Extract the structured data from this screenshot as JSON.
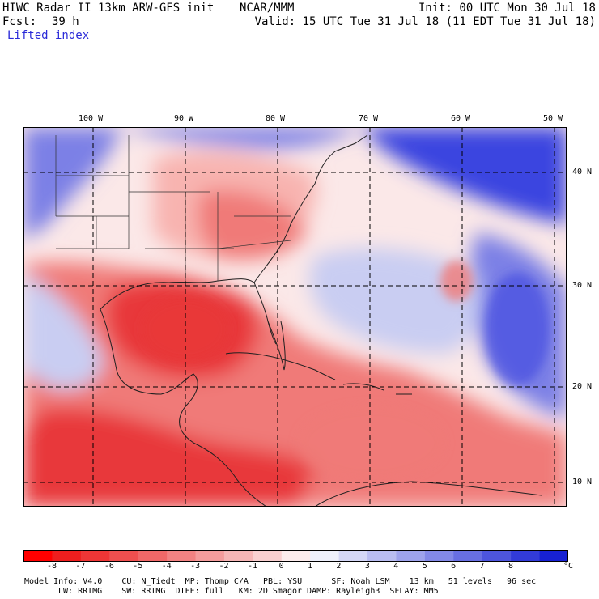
{
  "header": {
    "title_left": "HIWC Radar II 13km ARW-GFS init",
    "org": "NCAR/MMM",
    "init": "Init: 00 UTC Mon 30 Jul 18",
    "fcst_label": "Fcst:",
    "fcst_value": "39 h",
    "valid": "Valid: 15 UTC Tue 31 Jul 18 (11 EDT Tue 31 Jul 18)",
    "field": "Lifted index"
  },
  "map": {
    "lon_labels": [
      "100 W",
      "90 W",
      "80 W",
      "70 W",
      "60 W",
      "50 W"
    ],
    "lat_labels": [
      "40 N",
      "30 N",
      "20 N",
      "10 N"
    ],
    "colors": {
      "warm_strong": "#e8393a",
      "warm_mid": "#f07a78",
      "warm_light": "#f8b4b0",
      "neutral": "#fbe8e8",
      "cool_light": "#c9cdf2",
      "cool_mid": "#7c80e6",
      "cool_strong": "#3a44e0",
      "coast": "#202020",
      "grid": "#000000"
    }
  },
  "colorbar": {
    "ticks": [
      "-8",
      "-7",
      "-6",
      "-5",
      "-4",
      "-3",
      "-2",
      "-1",
      "0",
      "1",
      "2",
      "3",
      "4",
      "5",
      "6",
      "7",
      "8"
    ],
    "unit": "°C",
    "colors": [
      "#ff0000",
      "#ee1e1e",
      "#ee3636",
      "#ef4f4f",
      "#f06868",
      "#f28282",
      "#f49c9c",
      "#f6b6b6",
      "#f9d0d0",
      "#fcecec",
      "#eef0fb",
      "#d4d7f6",
      "#b9bdf1",
      "#9ea3ec",
      "#8389e7",
      "#686fe2",
      "#4d55dd",
      "#323bd8",
      "#1721d3"
    ]
  },
  "info": {
    "line1": "Model Info: V4.0    CU: N_Tiedt  MP: Thomp C/A   PBL: YSU      SF: Noah LSM    13 km   51 levels   96 sec",
    "line2": "LW: RRTMG    SW: RRTMG  DIFF: full   KM: 2D Smagor DAMP: Rayleigh3  SFLAY: MM5"
  }
}
